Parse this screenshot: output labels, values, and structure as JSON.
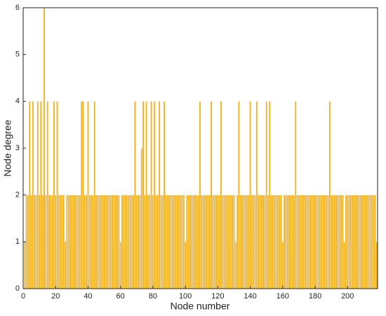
{
  "chart_data": {
    "type": "bar",
    "xlabel": "Node number",
    "ylabel": "Node degree",
    "color": "#f0b323",
    "x": [
      1,
      2,
      3,
      4,
      5,
      6,
      7,
      8,
      9,
      10,
      11,
      12,
      13,
      14,
      15,
      16,
      17,
      18,
      19,
      20,
      21,
      22,
      23,
      24,
      25,
      26,
      27,
      28,
      29,
      30,
      31,
      32,
      33,
      34,
      35,
      36,
      37,
      38,
      39,
      40,
      41,
      42,
      43,
      44,
      45,
      46,
      47,
      48,
      49,
      50,
      51,
      52,
      53,
      54,
      55,
      56,
      57,
      58,
      59,
      60,
      61,
      62,
      63,
      64,
      65,
      66,
      67,
      68,
      69,
      70,
      71,
      72,
      73,
      74,
      75,
      76,
      77,
      78,
      79,
      80,
      81,
      82,
      83,
      84,
      85,
      86,
      87,
      88,
      89,
      90,
      91,
      92,
      93,
      94,
      95,
      96,
      97,
      98,
      99,
      100,
      101,
      102,
      103,
      104,
      105,
      106,
      107,
      108,
      109,
      110,
      111,
      112,
      113,
      114,
      115,
      116,
      117,
      118,
      119,
      120,
      121,
      122,
      123,
      124,
      125,
      126,
      127,
      128,
      129,
      130,
      131,
      132,
      133,
      134,
      135,
      136,
      137,
      138,
      139,
      140,
      141,
      142,
      143,
      144,
      145,
      146,
      147,
      148,
      149,
      150,
      151,
      152,
      153,
      154,
      155,
      156,
      157,
      158,
      159,
      160,
      161,
      162,
      163,
      164,
      165,
      166,
      167,
      168,
      169,
      170,
      171,
      172,
      173,
      174,
      175,
      176,
      177,
      178,
      179,
      180,
      181,
      182,
      183,
      184,
      185,
      186,
      187,
      188,
      189,
      190,
      191,
      192,
      193,
      194,
      195,
      196,
      197,
      198,
      199,
      200,
      201,
      202,
      203,
      204,
      205,
      206,
      207,
      208,
      209,
      210,
      211,
      212,
      213,
      214,
      215,
      216,
      217,
      218
    ],
    "values": [
      1,
      2,
      2,
      4,
      2,
      4,
      2,
      2,
      4,
      2,
      4,
      2,
      6,
      2,
      4,
      2,
      2,
      2,
      4,
      2,
      4,
      2,
      2,
      2,
      2,
      1,
      2,
      2,
      2,
      2,
      2,
      2,
      2,
      2,
      2,
      4,
      4,
      2,
      2,
      4,
      2,
      2,
      2,
      4,
      2,
      2,
      2,
      2,
      2,
      2,
      2,
      2,
      2,
      2,
      2,
      2,
      2,
      2,
      2,
      1,
      2,
      2,
      2,
      2,
      2,
      2,
      2,
      2,
      4,
      2,
      2,
      2,
      3,
      4,
      2,
      4,
      2,
      2,
      4,
      2,
      4,
      2,
      2,
      4,
      2,
      2,
      4,
      2,
      2,
      2,
      2,
      2,
      2,
      2,
      2,
      2,
      2,
      2,
      2,
      1,
      2,
      2,
      2,
      2,
      2,
      2,
      2,
      2,
      4,
      2,
      2,
      2,
      2,
      2,
      2,
      4,
      2,
      2,
      2,
      2,
      2,
      4,
      2,
      2,
      2,
      2,
      2,
      2,
      2,
      2,
      1,
      2,
      4,
      2,
      2,
      2,
      2,
      2,
      2,
      4,
      2,
      2,
      2,
      4,
      2,
      2,
      2,
      2,
      2,
      4,
      2,
      4,
      2,
      2,
      2,
      2,
      2,
      2,
      2,
      1,
      2,
      2,
      2,
      2,
      2,
      2,
      2,
      4,
      2,
      2,
      2,
      2,
      2,
      2,
      2,
      2,
      2,
      2,
      2,
      2,
      2,
      2,
      2,
      2,
      2,
      2,
      2,
      2,
      4,
      2,
      2,
      2,
      2,
      2,
      2,
      2,
      2,
      1,
      2,
      2,
      2,
      2,
      2,
      2,
      2,
      2,
      2,
      2,
      2,
      2,
      2,
      2,
      2,
      2,
      2,
      2,
      2,
      1
    ],
    "xlim": [
      0,
      218.5
    ],
    "ylim": [
      0,
      6
    ],
    "xticks": [
      0,
      20,
      40,
      60,
      80,
      100,
      120,
      140,
      160,
      180,
      200
    ],
    "yticks": [
      0,
      1,
      2,
      3,
      4,
      5,
      6
    ]
  }
}
